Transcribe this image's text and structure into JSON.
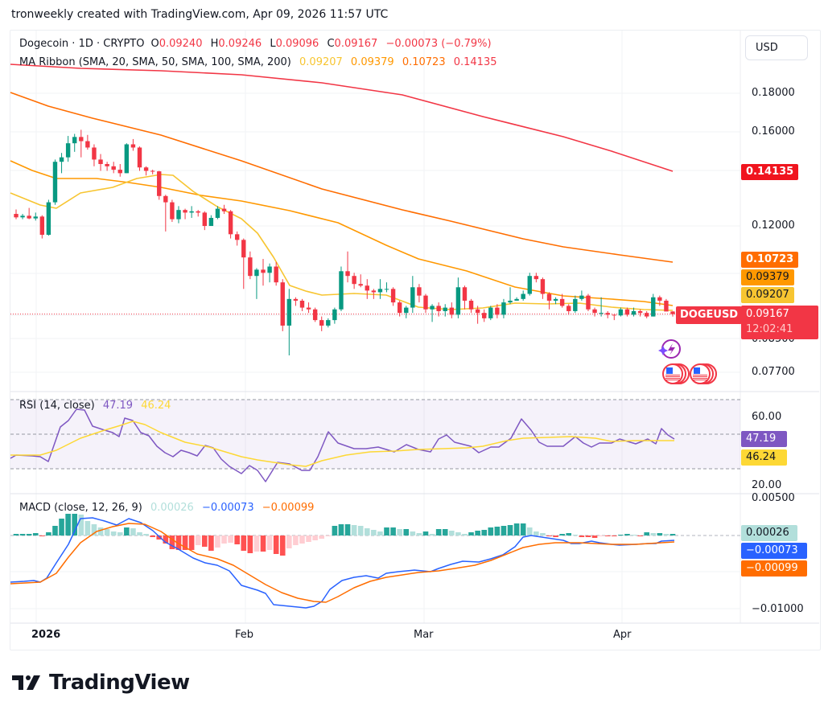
{
  "caption": "tronweekly created with TradingView.com, Apr 09, 2026 11:57 UTC",
  "header": {
    "symbol": "Dogecoin · 1D · CRYPTO",
    "ohlc": {
      "o_label": "O",
      "o": "0.09240",
      "h_label": "H",
      "h": "0.09246",
      "l_label": "L",
      "l": "0.09096",
      "c_label": "C",
      "c": "0.09167",
      "change": "−0.00073 (−0.79%)"
    },
    "ma_ribbon": {
      "label": "MA Ribbon (SMA, 20, SMA, 50, SMA, 100, SMA, 200)",
      "v20": "0.09207",
      "v50": "0.09379",
      "v100": "0.10723",
      "v200": "0.14135"
    }
  },
  "currency_button": "USD",
  "price_axis": {
    "ticks": [
      "0.18000",
      "0.16000",
      "0.12000",
      "0.08500",
      "0.07700"
    ],
    "tags": {
      "sma200": "0.14135",
      "sma100": "0.10723",
      "sma50": "0.09379",
      "sma20": "0.09207",
      "last": "0.09167",
      "countdown": "12:02:41"
    },
    "symbol_tag": "DOGEUSD"
  },
  "rsi": {
    "label": "RSI (14, close)",
    "value": "47.19",
    "ma_value": "46.24",
    "ticks": [
      "60.00",
      "20.00"
    ]
  },
  "macd": {
    "label": "MACD (close, 12, 26, 9)",
    "hist": "0.00026",
    "macd": "−0.00073",
    "signal": "−0.00099",
    "ticks": [
      "0.00500",
      "−0.01000"
    ]
  },
  "time_axis": [
    "2026",
    "Feb",
    "Mar",
    "Apr"
  ],
  "brand": "TradingView",
  "colors": {
    "up": "#089981",
    "down": "#f23645",
    "sma20": "#f7c531",
    "sma50": "#ff9800",
    "sma100": "#ff6d00",
    "sma200": "#f23645",
    "rsi": "#7e57c2",
    "rsi_ma": "#fdd835",
    "macd": "#2962ff",
    "signal": "#ff6d00"
  },
  "chart_data": [
    {
      "type": "candlestick",
      "title": "Dogecoin · 1D · CRYPTO (DOGEUSD)",
      "ylabel": "USD",
      "yscale": "log",
      "ylim": [
        0.073,
        0.195
      ],
      "x_ticks": [
        "2026",
        "Feb",
        "Mar",
        "Apr"
      ],
      "last": {
        "open": 0.0924,
        "high": 0.09246,
        "low": 0.09096,
        "close": 0.09167,
        "change": -0.00073,
        "change_pct": -0.79
      },
      "ohlc": [
        [
          0.1245,
          0.1262,
          0.1225,
          0.1232
        ],
        [
          0.1232,
          0.1245,
          0.1225,
          0.1238
        ],
        [
          0.1238,
          0.1268,
          0.1225,
          0.1228
        ],
        [
          0.1228,
          0.125,
          0.122,
          0.1235
        ],
        [
          0.1235,
          0.124,
          0.1155,
          0.1168
        ],
        [
          0.1168,
          0.13,
          0.1165,
          0.129
        ],
        [
          0.129,
          0.147,
          0.128,
          0.146
        ],
        [
          0.146,
          0.15,
          0.141,
          0.148
        ],
        [
          0.148,
          0.158,
          0.146,
          0.1545
        ],
        [
          0.1545,
          0.159,
          0.1505,
          0.1575
        ],
        [
          0.1575,
          0.161,
          0.148,
          0.1555
        ],
        [
          0.1555,
          0.1585,
          0.1515,
          0.1525
        ],
        [
          0.1525,
          0.154,
          0.144,
          0.147
        ],
        [
          0.147,
          0.1495,
          0.142,
          0.145
        ],
        [
          0.145,
          0.146,
          0.142,
          0.144
        ],
        [
          0.144,
          0.146,
          0.141,
          0.1425
        ],
        [
          0.1425,
          0.145,
          0.1395,
          0.141
        ],
        [
          0.141,
          0.1545,
          0.141,
          0.154
        ],
        [
          0.154,
          0.1565,
          0.151,
          0.1525
        ],
        [
          0.1525,
          0.153,
          0.142,
          0.1435
        ],
        [
          0.1435,
          0.144,
          0.14,
          0.142
        ],
        [
          0.142,
          0.1425,
          0.1405,
          0.1418
        ],
        [
          0.1418,
          0.142,
          0.13,
          0.1315
        ],
        [
          0.1315,
          0.132,
          0.118,
          0.129
        ],
        [
          0.129,
          0.13,
          0.1215,
          0.1225
        ],
        [
          0.1225,
          0.1275,
          0.121,
          0.126
        ],
        [
          0.126,
          0.1265,
          0.1225,
          0.125
        ],
        [
          0.125,
          0.1275,
          0.123,
          0.1255
        ],
        [
          0.1255,
          0.126,
          0.1235,
          0.125
        ],
        [
          0.125,
          0.1255,
          0.1185,
          0.12
        ],
        [
          0.12,
          0.124,
          0.12,
          0.123
        ],
        [
          0.123,
          0.1275,
          0.1225,
          0.1265
        ],
        [
          0.1265,
          0.128,
          0.1245,
          0.1255
        ],
        [
          0.1255,
          0.126,
          0.1155,
          0.117
        ],
        [
          0.117,
          0.118,
          0.113,
          0.115
        ],
        [
          0.115,
          0.1155,
          0.099,
          0.109
        ],
        [
          0.109,
          0.111,
          0.102,
          0.103
        ],
        [
          0.103,
          0.1055,
          0.096,
          0.105
        ],
        [
          0.105,
          0.1085,
          0.1,
          0.104
        ],
        [
          0.104,
          0.107,
          0.101,
          0.106
        ],
        [
          0.106,
          0.1075,
          0.1,
          0.101
        ],
        [
          0.101,
          0.102,
          0.087,
          0.0885
        ],
        [
          0.0885,
          0.099,
          0.0808,
          0.096
        ],
        [
          0.096,
          0.0965,
          0.094,
          0.0955
        ],
        [
          0.0955,
          0.096,
          0.0925,
          0.0935
        ],
        [
          0.0935,
          0.095,
          0.092,
          0.093
        ],
        [
          0.093,
          0.0935,
          0.0895,
          0.09
        ],
        [
          0.09,
          0.091,
          0.087,
          0.0885
        ],
        [
          0.0885,
          0.0905,
          0.088,
          0.09
        ],
        [
          0.09,
          0.0935,
          0.089,
          0.093
        ],
        [
          0.093,
          0.106,
          0.0925,
          0.1045
        ],
        [
          0.1045,
          0.111,
          0.101,
          0.103
        ],
        [
          0.103,
          0.104,
          0.099,
          0.1005
        ],
        [
          0.1005,
          0.1035,
          0.0995,
          0.1
        ],
        [
          0.1,
          0.102,
          0.096,
          0.0985
        ],
        [
          0.0985,
          0.099,
          0.096,
          0.098
        ],
        [
          0.098,
          0.102,
          0.096,
          0.099
        ],
        [
          0.099,
          0.101,
          0.098,
          0.099
        ],
        [
          0.099,
          0.0995,
          0.094,
          0.095
        ],
        [
          0.095,
          0.0955,
          0.091,
          0.092
        ],
        [
          0.092,
          0.094,
          0.0905,
          0.0935
        ],
        [
          0.0935,
          0.103,
          0.092,
          0.0995
        ],
        [
          0.0995,
          0.1005,
          0.095,
          0.097
        ],
        [
          0.097,
          0.0975,
          0.092,
          0.093
        ],
        [
          0.093,
          0.0945,
          0.0895,
          0.094
        ],
        [
          0.094,
          0.095,
          0.091,
          0.0925
        ],
        [
          0.0925,
          0.0945,
          0.091,
          0.0935
        ],
        [
          0.0935,
          0.095,
          0.0905,
          0.0915
        ],
        [
          0.0915,
          0.1025,
          0.0905,
          0.0995
        ],
        [
          0.0995,
          0.1,
          0.093,
          0.0955
        ],
        [
          0.0955,
          0.096,
          0.092,
          0.093
        ],
        [
          0.093,
          0.094,
          0.089,
          0.092
        ],
        [
          0.092,
          0.093,
          0.0895,
          0.0905
        ],
        [
          0.0905,
          0.094,
          0.09,
          0.0935
        ],
        [
          0.0935,
          0.0945,
          0.0905,
          0.0915
        ],
        [
          0.0915,
          0.096,
          0.0905,
          0.095
        ],
        [
          0.095,
          0.0995,
          0.0945,
          0.0955
        ],
        [
          0.0955,
          0.0965,
          0.0955,
          0.096
        ],
        [
          0.096,
          0.0985,
          0.0955,
          0.0975
        ],
        [
          0.0975,
          0.104,
          0.097,
          0.103
        ],
        [
          0.103,
          0.104,
          0.101,
          0.102
        ],
        [
          0.102,
          0.1025,
          0.096,
          0.0975
        ],
        [
          0.0975,
          0.098,
          0.093,
          0.0955
        ],
        [
          0.0955,
          0.0965,
          0.0945,
          0.096
        ],
        [
          0.096,
          0.0975,
          0.0935,
          0.094
        ],
        [
          0.094,
          0.0945,
          0.0915,
          0.0925
        ],
        [
          0.0925,
          0.097,
          0.092,
          0.096
        ],
        [
          0.096,
          0.0985,
          0.0955,
          0.097
        ],
        [
          0.097,
          0.0975,
          0.0925,
          0.093
        ],
        [
          0.093,
          0.0935,
          0.091,
          0.092
        ],
        [
          0.092,
          0.0965,
          0.091,
          0.092
        ],
        [
          0.092,
          0.0925,
          0.0905,
          0.0915
        ],
        [
          0.0915,
          0.0915,
          0.09,
          0.0913
        ],
        [
          0.0913,
          0.0935,
          0.091,
          0.093
        ],
        [
          0.093,
          0.0935,
          0.091,
          0.0915
        ],
        [
          0.0915,
          0.0935,
          0.091,
          0.0925
        ],
        [
          0.0925,
          0.093,
          0.091,
          0.092
        ],
        [
          0.092,
          0.0925,
          0.0905,
          0.091
        ],
        [
          0.091,
          0.0975,
          0.091,
          0.0965
        ],
        [
          0.0965,
          0.097,
          0.094,
          0.0955
        ],
        [
          0.0955,
          0.096,
          0.093,
          0.0924
        ],
        [
          0.0924,
          0.09246,
          0.09096,
          0.09167
        ]
      ],
      "sma": {
        "sma20_last": 0.09207,
        "sma50_last": 0.09379,
        "sma100_last": 0.10723,
        "sma200_last": 0.14135
      }
    },
    {
      "type": "line",
      "title": "RSI (14, close)",
      "ylim": [
        10,
        75
      ],
      "bands": [
        30,
        50,
        70
      ],
      "y_ticks": [
        60,
        20
      ],
      "series": [
        {
          "name": "RSI",
          "last": 47.19
        },
        {
          "name": "RSI-based MA",
          "last": 46.24
        }
      ]
    },
    {
      "type": "bar+line",
      "title": "MACD (close, 12, 26, 9)",
      "y_ticks": [
        0.005,
        -0.01
      ],
      "series": [
        {
          "name": "Histogram",
          "last": 0.00026
        },
        {
          "name": "MACD",
          "last": -0.00073
        },
        {
          "name": "Signal",
          "last": -0.00099
        }
      ]
    }
  ]
}
